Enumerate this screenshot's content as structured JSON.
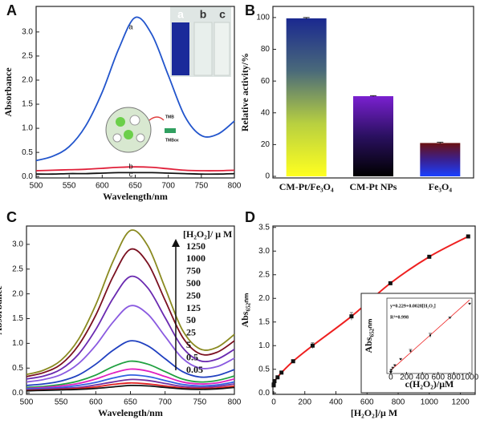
{
  "chart_data": [
    {
      "type": "line",
      "panel": "A",
      "x_label": "Wavelength/nm",
      "y_label": "Absorbance",
      "xlim": [
        500,
        800
      ],
      "xticks": [
        500,
        550,
        600,
        650,
        700,
        750,
        800
      ],
      "ylim": [
        -0.03,
        3.53
      ],
      "yticks": [
        {
          "value": 0,
          "label": "0.0"
        },
        0.5,
        {
          "value": 1,
          "label": "1.0"
        },
        1.5,
        {
          "value": 2,
          "label": "2.0"
        },
        2.5,
        {
          "value": 3,
          "label": "3.0"
        }
      ],
      "x": [
        500,
        525,
        550,
        575,
        600,
        625,
        650,
        675,
        700,
        725,
        750,
        775,
        800
      ],
      "series": [
        {
          "name": "a",
          "color": "#2255cc",
          "values": [
            0.33,
            0.42,
            0.62,
            1.05,
            1.75,
            2.65,
            3.3,
            2.95,
            2.1,
            1.25,
            0.85,
            0.88,
            1.15
          ]
        },
        {
          "name": "b",
          "color": "#e0203a",
          "values": [
            0.12,
            0.13,
            0.14,
            0.15,
            0.17,
            0.19,
            0.2,
            0.19,
            0.16,
            0.13,
            0.12,
            0.12,
            0.13
          ]
        },
        {
          "name": "c",
          "color": "#111111",
          "values": [
            0.05,
            0.05,
            0.06,
            0.06,
            0.07,
            0.08,
            0.08,
            0.08,
            0.07,
            0.06,
            0.05,
            0.05,
            0.06
          ]
        }
      ],
      "inset_labels": [
        "a",
        "b",
        "c"
      ],
      "annotations": [
        "TMB",
        "TMBox"
      ]
    },
    {
      "type": "bar",
      "panel": "B",
      "y_label": "Relative activity/%",
      "categories": [
        "CM-Pt/Fe₃O₄",
        "CM-Pt NPs",
        "Fe₃O₄"
      ],
      "values": [
        99.5,
        50.5,
        21
      ],
      "errors": [
        0.5,
        0.3,
        0.5
      ],
      "colors": [
        [
          "#ffff20",
          "#b8d040",
          "#4a6a7a",
          "#1a2890"
        ],
        [
          "#000000",
          "#2a1060",
          "#7a20d0"
        ],
        [
          "#1a40ff",
          "#3a2090",
          "#6a1010"
        ]
      ],
      "ylim": [
        -1,
        107
      ],
      "yticks": [
        0,
        20,
        40,
        60,
        80,
        100
      ]
    },
    {
      "type": "line",
      "panel": "C",
      "x_label": "Wavelength/nm",
      "y_label": "Absorbance",
      "legend_title": "[H₂O₂]/ μ M",
      "xlim": [
        500,
        800
      ],
      "xticks": [
        500,
        550,
        600,
        650,
        700,
        750,
        800
      ],
      "ylim": [
        -0.03,
        3.37
      ],
      "yticks": [
        {
          "value": 0,
          "label": "0.0"
        },
        0.5,
        {
          "value": 1,
          "label": "1.0"
        },
        1.5,
        {
          "value": 2,
          "label": "2.0"
        },
        2.5,
        {
          "value": 3,
          "label": "3.0"
        }
      ],
      "x": [
        500,
        525,
        550,
        575,
        600,
        625,
        650,
        675,
        700,
        725,
        750,
        775,
        800
      ],
      "series": [
        {
          "name": "1250",
          "color": "#8a8a20",
          "values": [
            0.37,
            0.46,
            0.66,
            1.08,
            1.78,
            2.66,
            3.28,
            2.97,
            2.12,
            1.27,
            0.89,
            0.92,
            1.18
          ]
        },
        {
          "name": "1000",
          "color": "#7a1020",
          "values": [
            0.33,
            0.41,
            0.58,
            0.96,
            1.57,
            2.35,
            2.9,
            2.62,
            1.87,
            1.13,
            0.79,
            0.82,
            1.05
          ]
        },
        {
          "name": "750",
          "color": "#6a2ab0",
          "values": [
            0.28,
            0.34,
            0.48,
            0.78,
            1.28,
            1.91,
            2.35,
            2.12,
            1.52,
            0.92,
            0.65,
            0.68,
            0.88
          ]
        },
        {
          "name": "500",
          "color": "#8a5ae0",
          "values": [
            0.22,
            0.27,
            0.37,
            0.59,
            0.96,
            1.43,
            1.76,
            1.59,
            1.14,
            0.7,
            0.5,
            0.53,
            0.7
          ]
        },
        {
          "name": "250",
          "color": "#2040c0",
          "values": [
            0.15,
            0.18,
            0.24,
            0.36,
            0.58,
            0.86,
            1.05,
            0.95,
            0.69,
            0.43,
            0.32,
            0.35,
            0.47
          ]
        },
        {
          "name": "125",
          "color": "#20a040",
          "values": [
            0.11,
            0.13,
            0.17,
            0.24,
            0.36,
            0.53,
            0.64,
            0.58,
            0.43,
            0.28,
            0.22,
            0.25,
            0.34
          ]
        },
        {
          "name": "50",
          "color": "#e020c0",
          "values": [
            0.09,
            0.11,
            0.14,
            0.19,
            0.28,
            0.4,
            0.48,
            0.44,
            0.33,
            0.22,
            0.18,
            0.2,
            0.28
          ]
        },
        {
          "name": "25",
          "color": "#3060e0",
          "values": [
            0.08,
            0.09,
            0.11,
            0.15,
            0.21,
            0.3,
            0.36,
            0.33,
            0.25,
            0.17,
            0.14,
            0.16,
            0.22
          ]
        },
        {
          "name": "5",
          "color": "#7030a0",
          "values": [
            0.06,
            0.07,
            0.09,
            0.11,
            0.16,
            0.22,
            0.27,
            0.25,
            0.19,
            0.13,
            0.11,
            0.13,
            0.18
          ]
        },
        {
          "name": "0.5",
          "color": "#e02020",
          "values": [
            0.05,
            0.06,
            0.07,
            0.09,
            0.12,
            0.17,
            0.2,
            0.18,
            0.14,
            0.1,
            0.09,
            0.1,
            0.14
          ]
        },
        {
          "name": "0.05",
          "color": "#111111",
          "values": [
            0.04,
            0.05,
            0.06,
            0.07,
            0.09,
            0.12,
            0.15,
            0.14,
            0.11,
            0.08,
            0.07,
            0.08,
            0.11
          ]
        }
      ]
    },
    {
      "type": "scatter",
      "panel": "D",
      "x_label": "[H₂O₂]/μ M",
      "y_label": "Abs₆₅₂ₙₘ",
      "line_color": "#ee2020",
      "xlim": [
        -5,
        1295
      ],
      "xticks": [
        0,
        200,
        400,
        600,
        800,
        1000,
        1200
      ],
      "ylim": [
        -0.03,
        3.53
      ],
      "yticks": [
        {
          "value": 0,
          "label": "0.0"
        },
        0.5,
        {
          "value": 1,
          "label": "1.0"
        },
        1.5,
        {
          "value": 2,
          "label": "2.0"
        },
        2.5,
        {
          "value": 3,
          "label": "3.0"
        },
        3.5
      ],
      "x": [
        0.05,
        0.5,
        5,
        25,
        50,
        125,
        250,
        500,
        750,
        1000,
        1250
      ],
      "series": [
        {
          "color": "#111111",
          "values": [
            0.16,
            0.18,
            0.25,
            0.33,
            0.43,
            0.67,
            1.0,
            1.62,
            2.32,
            2.88,
            3.31
          ],
          "errors": [
            0.01,
            0.01,
            0.01,
            0.02,
            0.02,
            0.03,
            0.06,
            0.08,
            0.03,
            0.02,
            0.03
          ]
        }
      ]
    },
    {
      "type": "scatter",
      "x_label": "c(H₂O₂)/μM",
      "y_label": "Abs₆₅₂ₙₘ",
      "line_color": "#ee2020",
      "annotations": [
        "y=0.229+0.0028[H₂O₂]",
        "R²=0.998"
      ],
      "fit": [
        0.229,
        0.0028
      ],
      "xlim": [
        -50,
        1030
      ],
      "xticks": [
        0,
        200,
        400,
        600,
        800,
        1000
      ],
      "ylim": [
        0.1,
        3.1
      ],
      "x": [
        0.05,
        0.5,
        5,
        25,
        50,
        125,
        250,
        500,
        750,
        1000
      ],
      "series": [
        {
          "color": "#111111",
          "values": [
            0.16,
            0.18,
            0.25,
            0.33,
            0.43,
            0.67,
            1.0,
            1.62,
            2.32,
            2.88
          ],
          "errors": [
            0.01,
            0.01,
            0.01,
            0.02,
            0.02,
            0.03,
            0.06,
            0.08,
            0.03,
            0.02
          ]
        }
      ]
    }
  ]
}
